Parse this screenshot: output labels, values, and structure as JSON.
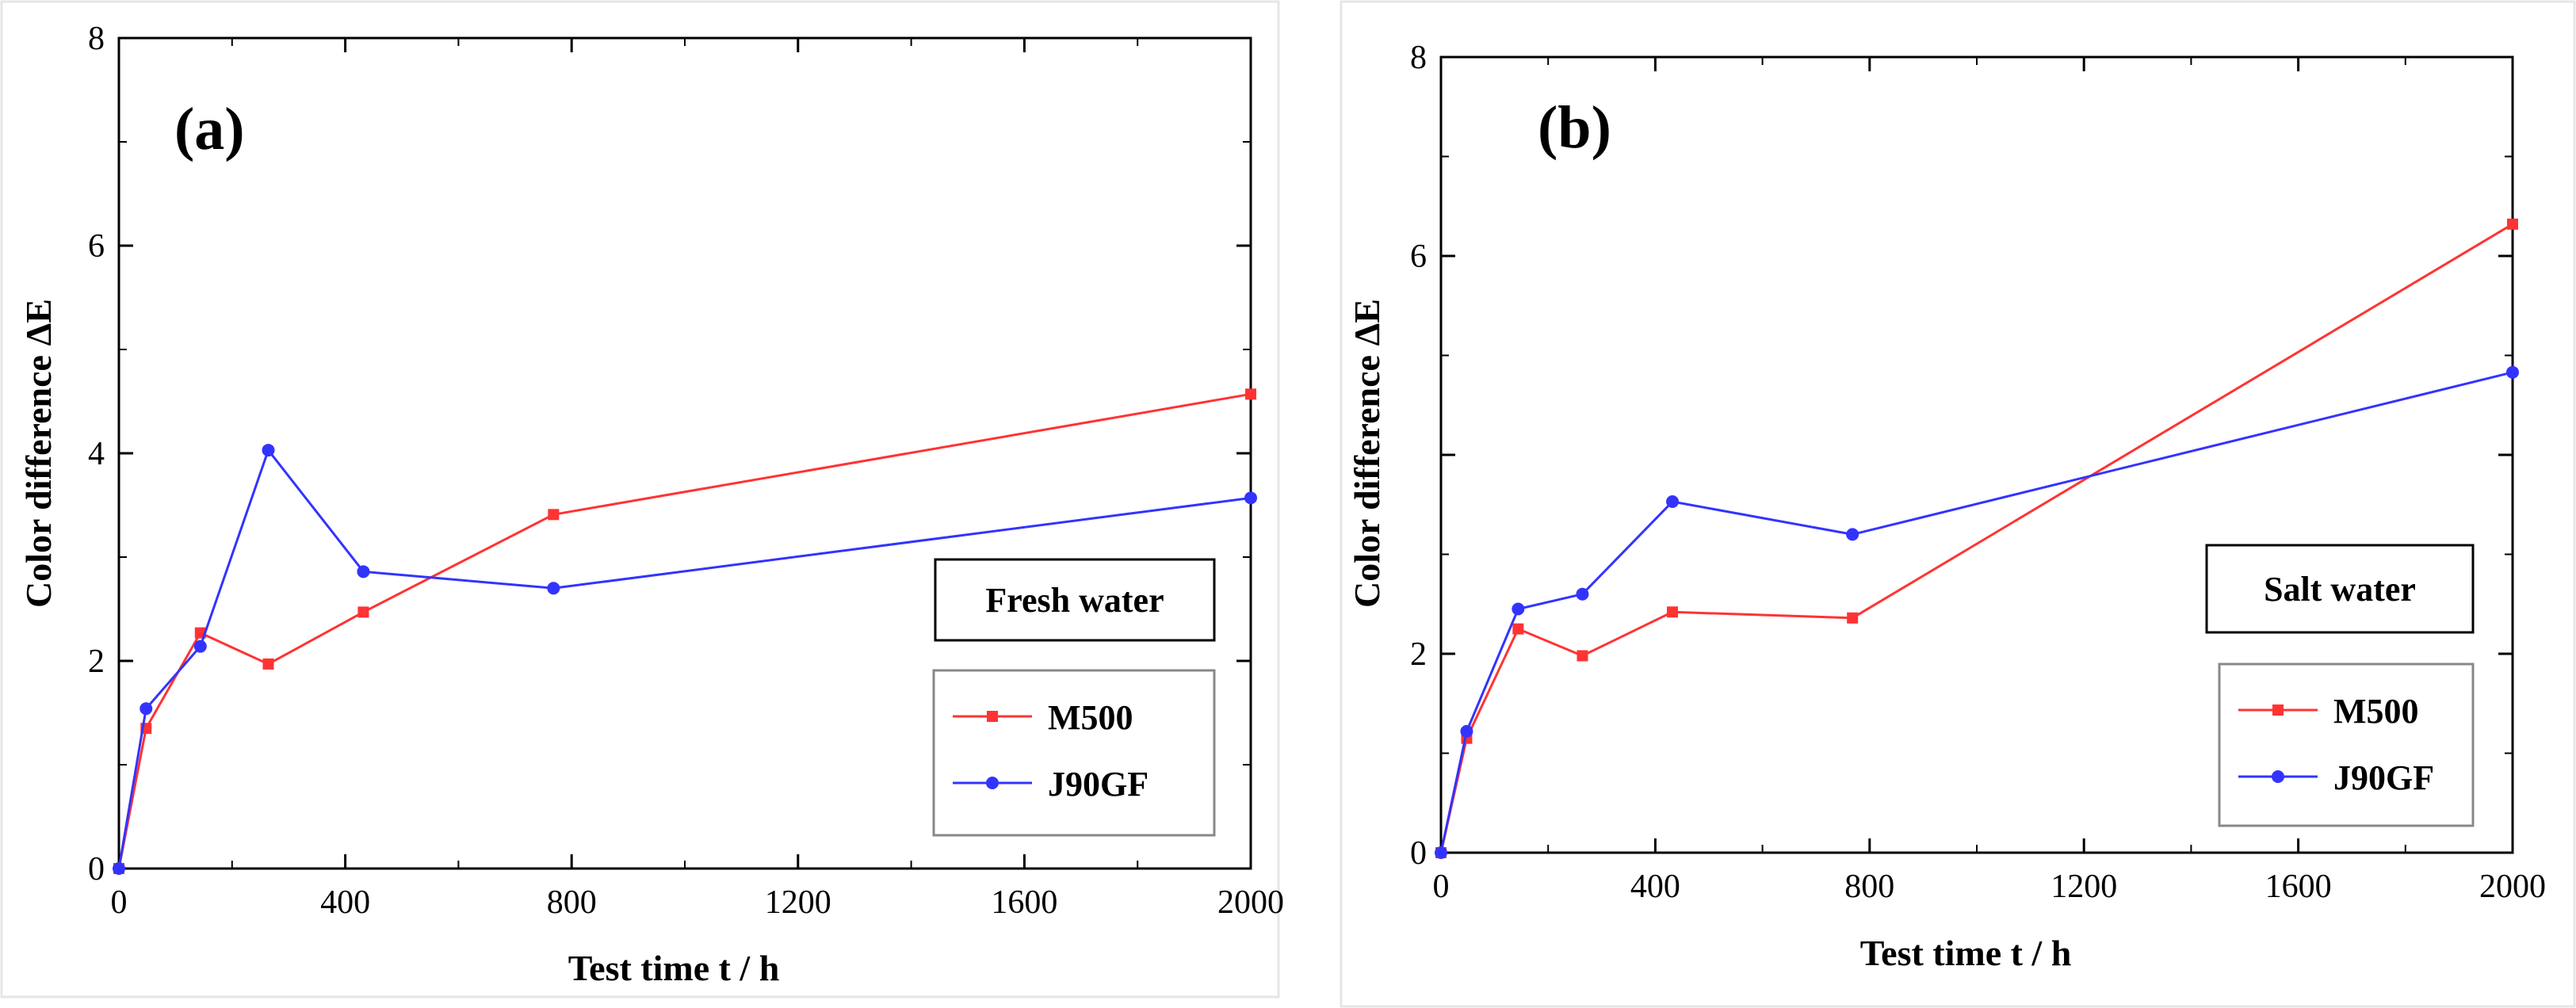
{
  "chart_data": [
    {
      "type": "line",
      "panel_label": "(a)",
      "title": "",
      "condition_label": "Fresh water",
      "xlabel": "Test time  t / h",
      "ylabel": "Color difference  ΔE",
      "xlim": [
        0,
        2000
      ],
      "ylim": [
        0,
        8
      ],
      "xticks": [
        0,
        400,
        800,
        1200,
        1600,
        2000
      ],
      "yticks": [
        0,
        2,
        4,
        6,
        8
      ],
      "grid": false,
      "legend_position": "bottom-right",
      "series": [
        {
          "name": "M500",
          "color": "#ff3333",
          "marker": "square",
          "x": [
            0,
            48,
            144,
            264,
            432,
            768,
            2000
          ],
          "y": [
            0.0,
            1.35,
            2.27,
            1.97,
            2.47,
            3.41,
            4.57
          ]
        },
        {
          "name": "J90GF",
          "color": "#3333ff",
          "marker": "circle",
          "x": [
            0,
            48,
            144,
            264,
            432,
            768,
            2000
          ],
          "y": [
            0.0,
            1.54,
            2.14,
            4.03,
            2.86,
            2.7,
            3.57
          ]
        }
      ]
    },
    {
      "type": "line",
      "panel_label": "(b)",
      "title": "",
      "condition_label": "Salt water",
      "xlabel": "Test time  t / h",
      "ylabel": "Color difference  ΔE",
      "xlim": [
        0,
        2000
      ],
      "ylim": [
        0,
        8
      ],
      "xticks": [
        0,
        400,
        800,
        1200,
        1600,
        2000
      ],
      "yticks": [
        0,
        2,
        6,
        8
      ],
      "grid": false,
      "legend_position": "bottom-right",
      "series": [
        {
          "name": "M500",
          "color": "#ff3333",
          "marker": "square",
          "x": [
            0,
            48,
            144,
            264,
            432,
            768,
            2000
          ],
          "y": [
            0.0,
            1.15,
            2.25,
            1.98,
            2.42,
            2.36,
            6.32
          ]
        },
        {
          "name": "J90GF",
          "color": "#3333ff",
          "marker": "circle",
          "x": [
            0,
            48,
            144,
            264,
            432,
            768,
            2000
          ],
          "y": [
            0.0,
            1.22,
            2.45,
            2.6,
            3.53,
            3.2,
            4.83
          ]
        }
      ]
    }
  ]
}
